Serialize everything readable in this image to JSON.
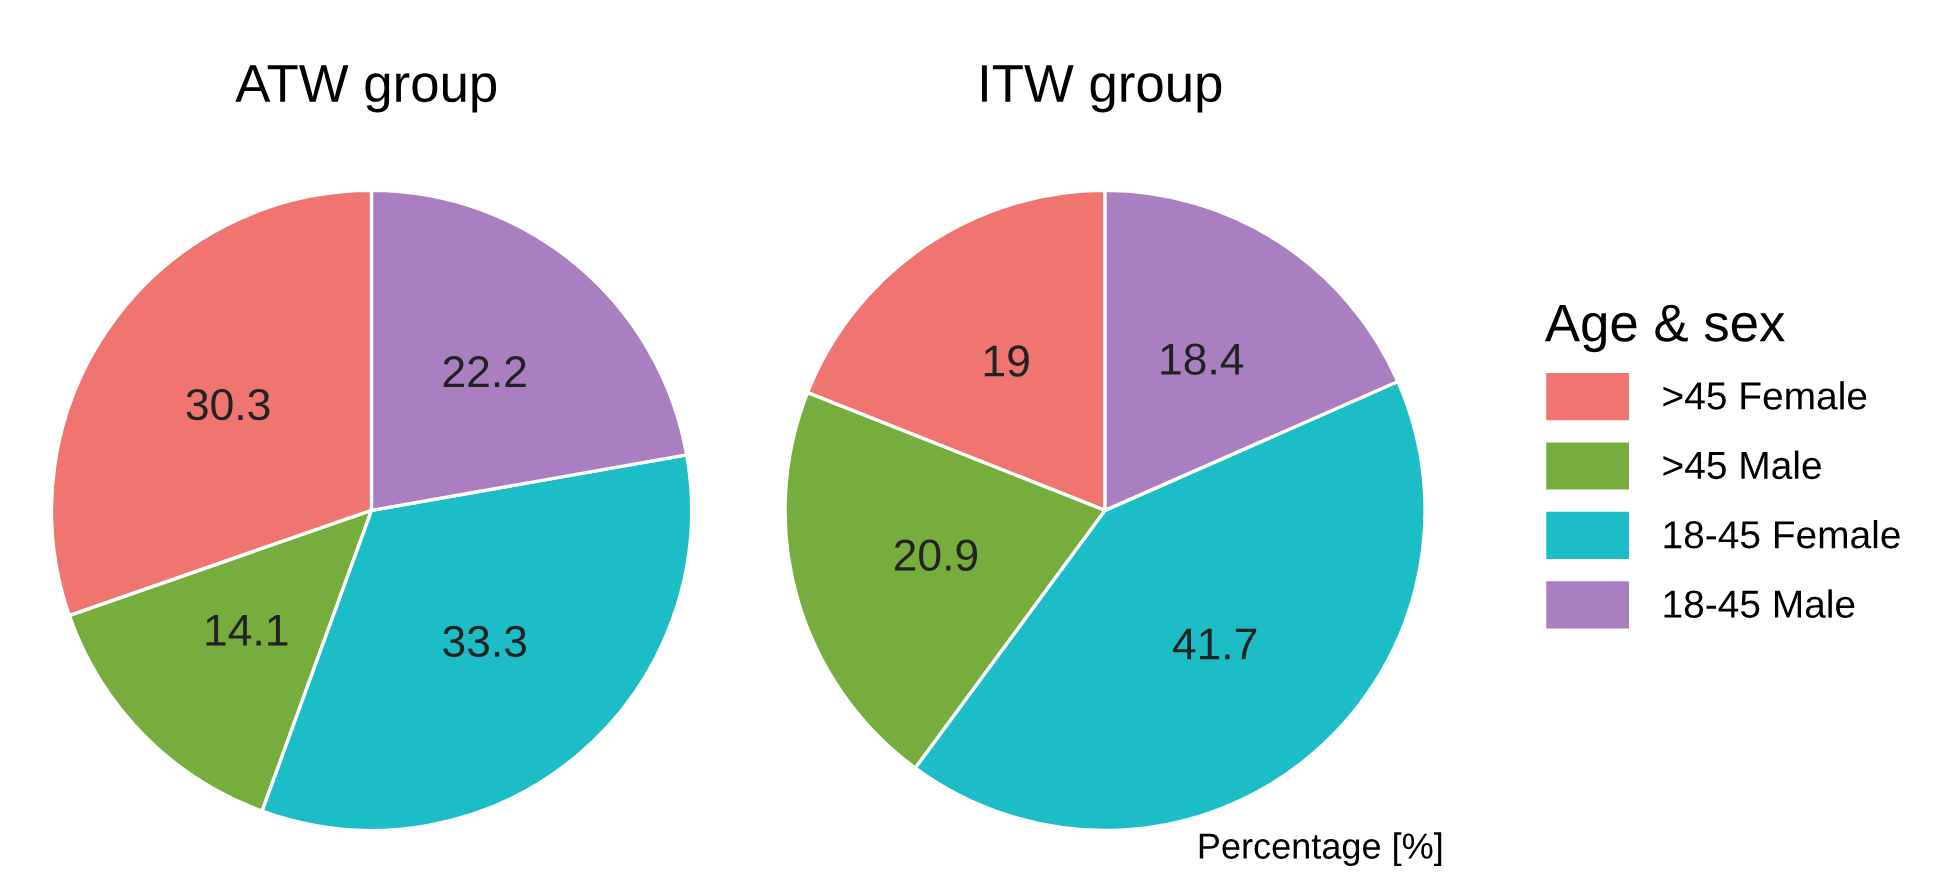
{
  "chart_data": [
    {
      "type": "pie",
      "title": "ATW group",
      "categories": [
        ">45 Female",
        ">45 Male",
        "18-45 Female",
        "18-45 Male"
      ],
      "values": [
        30.3,
        14.1,
        33.3,
        22.2
      ],
      "colors": [
        "#f07470",
        "#77ad3c",
        "#1cbdc6",
        "#a97fc2"
      ],
      "data_labels": true,
      "legend": "right",
      "legend_title": "Age & sex"
    },
    {
      "type": "pie",
      "title": "ITW group",
      "categories": [
        null,
        null,
        null,
        null
      ],
      "values": [
        19,
        20.9,
        41.7,
        18.4
      ],
      "colors": [
        "#f07470",
        "#77ad3c",
        "#1cbdc6",
        "#a97fc2"
      ],
      "data_labels": true,
      "legend": false,
      "annotations": [
        "Percentage [%]"
      ]
    }
  ]
}
